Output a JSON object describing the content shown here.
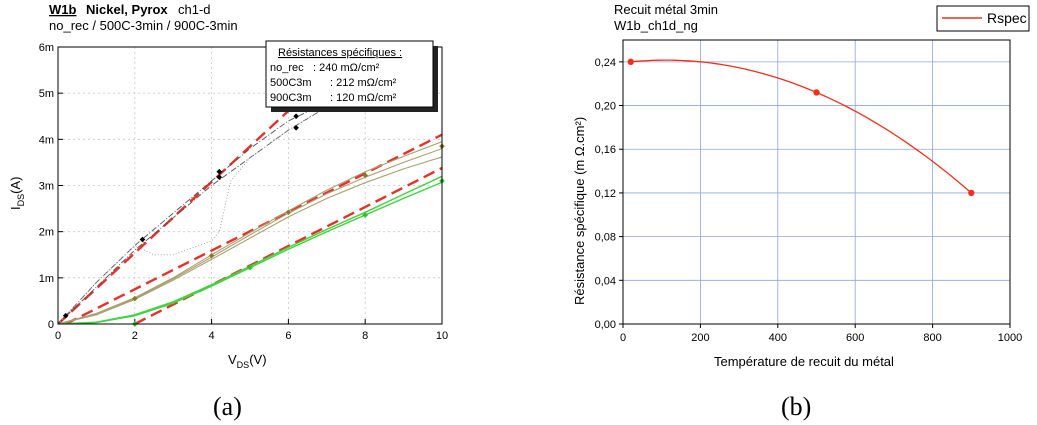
{
  "colors": {
    "red_dashed": "#e8302a",
    "green_curve": "#3fd43f",
    "olive_curve": "#a8a070",
    "dark_gray": "#505050",
    "grid_blue": "#8ea6df",
    "rspec_line": "#f0301c"
  },
  "panel_a": {
    "title_left": "W1b",
    "title_mid": "Nickel, Pyrox",
    "title_right": "ch1-d",
    "subtitle": "no_rec / 500C-3min  / 900C-3min",
    "box_title": "Résistances spécifiques :",
    "box_rows": [
      {
        "name": "no_rec",
        "value": ":  240 mΩ/cm²"
      },
      {
        "name": "500C3m",
        "value": ":  212 mΩ/cm²"
      },
      {
        "name": "900C3m",
        "value": ":  120 mΩ/cm²"
      }
    ],
    "ylabel_main": "I",
    "ylabel_sub": "DS",
    "ylabel_unit": "(A)",
    "xlabel_main": "V",
    "xlabel_sub": "DS",
    "xlabel_unit": "(V)",
    "caption": "(a)"
  },
  "panel_b": {
    "title_line1": "Recuit métal 3min",
    "title_line2": "W1b_ch1d_ng",
    "legend": "Rspec",
    "ylabel": "Résistance spécifique (m    Ω.cm²)",
    "xlabel": "Température de recuit du métal",
    "caption": "(b)"
  },
  "chart_data": [
    {
      "type": "line",
      "title": "W1b  Nickel, Pyrox  ch1-d",
      "xlabel": "VDS(V)",
      "ylabel": "IDS(A)",
      "xlim": [
        0,
        10
      ],
      "ylim": [
        0,
        0.006
      ],
      "x_ticks": [
        0,
        2,
        4,
        6,
        8,
        10
      ],
      "y_ticks": [
        0,
        0.001,
        0.002,
        0.003,
        0.004,
        0.005,
        0.006
      ],
      "x_tick_labels": [
        "0",
        "2",
        "4",
        "6",
        "8",
        "10"
      ],
      "y_tick_labels": [
        "0",
        "1m",
        "2m",
        "3m",
        "4m",
        "5m",
        "6m"
      ],
      "grid": true,
      "series": [
        {
          "style": "dashed-red",
          "x": [
            0,
            7.8
          ],
          "y": [
            0,
            0.006
          ]
        },
        {
          "style": "dashed-red",
          "x": [
            0.2,
            10
          ],
          "y": [
            0,
            0.0041
          ]
        },
        {
          "style": "dashed-red",
          "x": [
            2,
            10
          ],
          "y": [
            0,
            0.00338
          ]
        },
        {
          "style": "green",
          "x": [
            0,
            1,
            2,
            3,
            4,
            5,
            6,
            7,
            8,
            9,
            10
          ],
          "y": [
            0,
            3e-05,
            0.00018,
            0.00045,
            0.00082,
            0.00122,
            0.00162,
            0.002,
            0.00236,
            0.00272,
            0.00307
          ]
        },
        {
          "style": "green",
          "x": [
            0,
            1,
            2,
            3,
            4,
            5,
            6,
            7,
            8,
            9,
            10
          ],
          "y": [
            0,
            4e-05,
            0.0002,
            0.00048,
            0.00085,
            0.00125,
            0.00166,
            0.00205,
            0.00242,
            0.00281,
            0.0032
          ]
        },
        {
          "style": "olive",
          "x": [
            0,
            1,
            2,
            3,
            4,
            5,
            6,
            7,
            8,
            9,
            10
          ],
          "y": [
            0,
            0.00022,
            0.00055,
            0.00098,
            0.00145,
            0.00193,
            0.0024,
            0.00282,
            0.00318,
            0.0035,
            0.0038
          ]
        },
        {
          "style": "olive",
          "x": [
            0,
            1,
            2,
            3,
            4,
            5,
            6,
            7,
            8,
            9,
            10
          ],
          "y": [
            0,
            0.00023,
            0.00057,
            0.001,
            0.0015,
            0.00198,
            0.00245,
            0.0029,
            0.0033,
            0.00363,
            0.00395
          ]
        },
        {
          "style": "olive",
          "x": [
            0,
            1,
            2,
            3,
            4,
            5,
            6,
            7,
            8,
            9,
            10
          ],
          "y": [
            0,
            0.0002,
            0.00053,
            0.00095,
            0.0014,
            0.00186,
            0.00232,
            0.00272,
            0.00306,
            0.00336,
            0.00362
          ]
        },
        {
          "style": "gray-dashdot",
          "x": [
            0,
            1,
            2,
            3,
            4,
            5,
            6,
            7
          ],
          "y": [
            0,
            0.0009,
            0.0017,
            0.0024,
            0.0031,
            0.0038,
            0.0044,
            0.0048
          ]
        },
        {
          "style": "gray-dashdot",
          "x": [
            0,
            1,
            2,
            3,
            4,
            5,
            6,
            7
          ],
          "y": [
            0,
            0.0008,
            0.0016,
            0.0023,
            0.003,
            0.0036,
            0.0042,
            0.0047
          ]
        },
        {
          "style": "gray-dotted",
          "x": [
            0,
            1,
            2,
            2.5,
            3,
            4,
            4.2,
            4.5,
            5,
            6,
            7
          ],
          "y": [
            0,
            0.0009,
            0.0017,
            0.0015,
            0.0015,
            0.0018,
            0.002,
            0.0031,
            0.0036,
            0.0042,
            0.0047
          ]
        }
      ],
      "markers": [
        {
          "color": "black",
          "x": [
            0.2,
            2.2,
            4.2,
            4.2,
            6.2,
            6.2
          ],
          "y": [
            0.00018,
            0.00183,
            0.0033,
            0.00318,
            0.0045,
            0.00425
          ]
        },
        {
          "color": "olive",
          "x": [
            2,
            4,
            6,
            8,
            10
          ],
          "y": [
            0.00055,
            0.00148,
            0.00242,
            0.00322,
            0.00385
          ]
        },
        {
          "color": "green",
          "x": [
            2,
            5,
            8,
            10
          ],
          "y": [
            0.0,
            0.00122,
            0.00236,
            0.0031
          ]
        }
      ]
    },
    {
      "type": "line",
      "title": "Recuit métal 3min",
      "subtitle": "W1b_ch1d_ng",
      "xlabel": "Température de recuit du métal",
      "ylabel": "Résistance spécifique (m    Ω.cm²)",
      "xlim": [
        0,
        1000
      ],
      "ylim": [
        0,
        0.26
      ],
      "x_ticks": [
        0,
        200,
        400,
        600,
        800,
        1000
      ],
      "y_ticks": [
        0.0,
        0.04,
        0.08,
        0.12,
        0.16,
        0.2,
        0.24
      ],
      "x_tick_labels": [
        "0",
        "200",
        "400",
        "600",
        "800",
        "1000"
      ],
      "y_tick_labels": [
        "0,00",
        "0,04",
        "0,08",
        "0,12",
        "0,16",
        "0,20",
        "0,24"
      ],
      "grid": true,
      "legend_position": "top-right",
      "series": [
        {
          "name": "Rspec",
          "x": [
            20,
            500,
            900
          ],
          "y": [
            0.24,
            0.212,
            0.12
          ]
        }
      ]
    }
  ]
}
